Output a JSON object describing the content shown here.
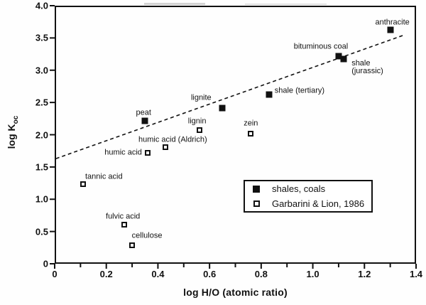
{
  "figure": {
    "background": "#fefefe",
    "ink": "#111111"
  },
  "chart_data": {
    "type": "scatter",
    "title": "",
    "xlabel": "log H/O (atomic ratio)",
    "ylabel_base": "log K",
    "ylabel_sub": "oc",
    "xlim": [
      0,
      1.4
    ],
    "ylim": [
      0,
      4.0
    ],
    "grid": false,
    "x_tick_labels": [
      "0",
      "0.2",
      "0.4",
      "0.6",
      "0.8",
      "1.0",
      "1.2",
      "1.4"
    ],
    "x_minor_tick_step": 0.1,
    "y_tick_labels": [
      "0",
      "0.5",
      "1.0",
      "1.5",
      "2.0",
      "2.5",
      "3.0",
      "3.5",
      "4.0"
    ],
    "trend_line": {
      "style": "dashed",
      "x1": 0.005,
      "y1": 1.63,
      "x2": 1.35,
      "y2": 3.54
    },
    "legend": {
      "position": "inside-lower-right",
      "items": [
        {
          "label": "shales, coals",
          "marker": "filled-square"
        },
        {
          "label": "Garbarini & Lion, 1986",
          "marker": "open-square"
        }
      ]
    },
    "series": [
      {
        "name": "shales, coals",
        "marker": "filled-square",
        "points": [
          {
            "label": "peat",
            "x": 0.35,
            "y": 2.21,
            "label_dx": -2,
            "label_dy": -11,
            "label_align": "center"
          },
          {
            "label": "lignite",
            "x": 0.65,
            "y": 2.41,
            "label_dx": -30,
            "label_dy": -14,
            "label_align": "center"
          },
          {
            "label": "shale (tertiary)",
            "x": 0.83,
            "y": 2.62,
            "label_dx": 8,
            "label_dy": -5,
            "label_align": "left"
          },
          {
            "label": "bituminous coal",
            "x": 1.1,
            "y": 3.22,
            "label_dx": -25,
            "label_dy": -13,
            "label_align": "center"
          },
          {
            "label": "shale\n(jurassic)",
            "x": 1.12,
            "y": 3.17,
            "label_dx": 11,
            "label_dy": 12,
            "label_align": "left"
          },
          {
            "label": "anthracite",
            "x": 1.3,
            "y": 3.63,
            "label_dx": 3,
            "label_dy": -10,
            "label_align": "center"
          }
        ]
      },
      {
        "name": "Garbarini & Lion, 1986",
        "marker": "open-square",
        "points": [
          {
            "label": "tannic acid",
            "x": 0.11,
            "y": 1.23,
            "label_dx": 3,
            "label_dy": -10,
            "label_align": "left"
          },
          {
            "label": "fulvic acid",
            "x": 0.27,
            "y": 0.61,
            "label_dx": -2,
            "label_dy": -11,
            "label_align": "center"
          },
          {
            "label": "cellulose",
            "x": 0.3,
            "y": 0.29,
            "label_dx": 21,
            "label_dy": -13,
            "label_align": "center"
          },
          {
            "label": "humic acid",
            "x": 0.36,
            "y": 1.72,
            "label_dx": -8,
            "label_dy": 0,
            "label_align": "right"
          },
          {
            "label": "humic acid (Aldrich)",
            "x": 0.43,
            "y": 1.81,
            "label_dx": 10,
            "label_dy": -10,
            "label_align": "center"
          },
          {
            "label": "lignin",
            "x": 0.56,
            "y": 2.07,
            "label_dx": -3,
            "label_dy": -12,
            "label_align": "center"
          },
          {
            "label": "zein",
            "x": 0.76,
            "y": 2.02,
            "label_dx": 0,
            "label_dy": -14,
            "label_align": "center"
          }
        ]
      }
    ]
  }
}
